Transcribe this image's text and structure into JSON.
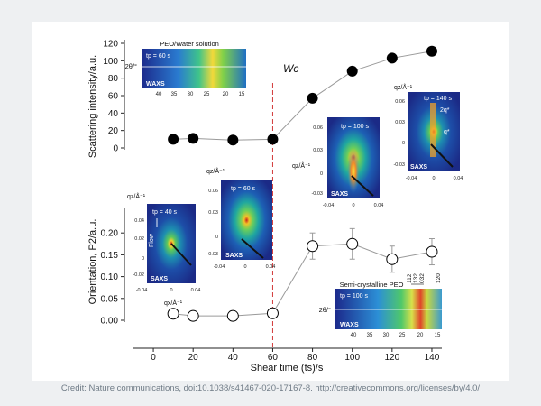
{
  "chart_data": [
    {
      "type": "scatter",
      "panel": "top",
      "ylabel": "Scattering intensity/a.u.",
      "ylim": [
        0,
        120
      ],
      "yticks": [
        "0",
        "20",
        "40",
        "60",
        "80",
        "100",
        "120"
      ],
      "series": [
        {
          "name": "",
          "marker": "filled-circle",
          "color": "#000000",
          "x": [
            10,
            20,
            40,
            60,
            80,
            100,
            120,
            140
          ],
          "y": [
            10,
            11,
            9,
            10,
            57,
            88,
            103,
            111
          ]
        }
      ]
    },
    {
      "type": "scatter",
      "panel": "bottom",
      "ylabel": "Orientation, P2/a.u.",
      "ylim": [
        0,
        0.25
      ],
      "yticks": [
        "0.00",
        "0.05",
        "0.10",
        "0.15",
        "0.20"
      ],
      "series": [
        {
          "name": "",
          "marker": "open-circle",
          "color": "#000000",
          "x": [
            10,
            20,
            40,
            60,
            80,
            100,
            120,
            140
          ],
          "y": [
            0.015,
            0.01,
            0.01,
            0.016,
            0.17,
            0.175,
            0.14,
            0.157
          ],
          "err": [
            0.005,
            0.004,
            0.003,
            0.004,
            0.03,
            0.035,
            0.03,
            0.03
          ]
        }
      ]
    }
  ],
  "axes": {
    "xlabel": "Shear time (ts)/s",
    "xticks": [
      "0",
      "20",
      "40",
      "60",
      "80",
      "100",
      "120",
      "140"
    ],
    "xlim": [
      -10,
      145
    ],
    "wc_label": "Wc",
    "wc_x": 60
  },
  "insets": {
    "waxs_top": {
      "title": "PEO/Water solution",
      "tp": "tp = 60 s",
      "tag": "WAXS",
      "axis": "2θ/°",
      "ticks": [
        "40",
        "35",
        "30",
        "25",
        "20",
        "15"
      ]
    },
    "waxs_bottom": {
      "title": "Semi-crystalline PEO",
      "tp": "tp = 100 s",
      "tag": "WAXS",
      "axis": "2θ/°",
      "ticks": [
        "40",
        "35",
        "30",
        "25",
        "20",
        "15"
      ],
      "peaks": [
        "112",
        "132",
        "032",
        "120"
      ]
    },
    "saxs_40": {
      "tp": "tp = 40 s",
      "tag": "SAXS",
      "flow": "Flow",
      "qx": "qx/Å⁻¹",
      "qz": "qz/Å⁻¹",
      "yticks": [
        "0.04",
        "0.02",
        "0",
        "-0.02"
      ],
      "xticks": [
        "-0.04",
        "0",
        "0.04"
      ]
    },
    "saxs_60": {
      "tp": "tp = 60 s",
      "tag": "SAXS",
      "qz": "qz/Å⁻¹",
      "yticks": [
        "0.06",
        "0.03",
        "0",
        "-0.03"
      ],
      "xticks": [
        "-0.04",
        "0",
        "0.04"
      ]
    },
    "saxs_100": {
      "tp": "tp = 100 s",
      "tag": "SAXS",
      "qz": "qz/Å⁻¹",
      "yticks": [
        "0.06",
        "0.03",
        "0",
        "-0.03"
      ],
      "xticks": [
        "-0.04",
        "0",
        "0.04"
      ]
    },
    "saxs_140": {
      "tp": "tp = 140 s",
      "tag": "SAXS",
      "qz": "qz/Å⁻¹",
      "q1": "2q*",
      "q2": "q*",
      "yticks": [
        "0.06",
        "0.03",
        "0",
        "-0.03"
      ],
      "xticks": [
        "-0.04",
        "0",
        "0.04"
      ]
    }
  },
  "credit": "Credit: Nature communications, doi:10.1038/s41467-020-17167-8. http://creativecommons.org/licenses/by/4.0/"
}
